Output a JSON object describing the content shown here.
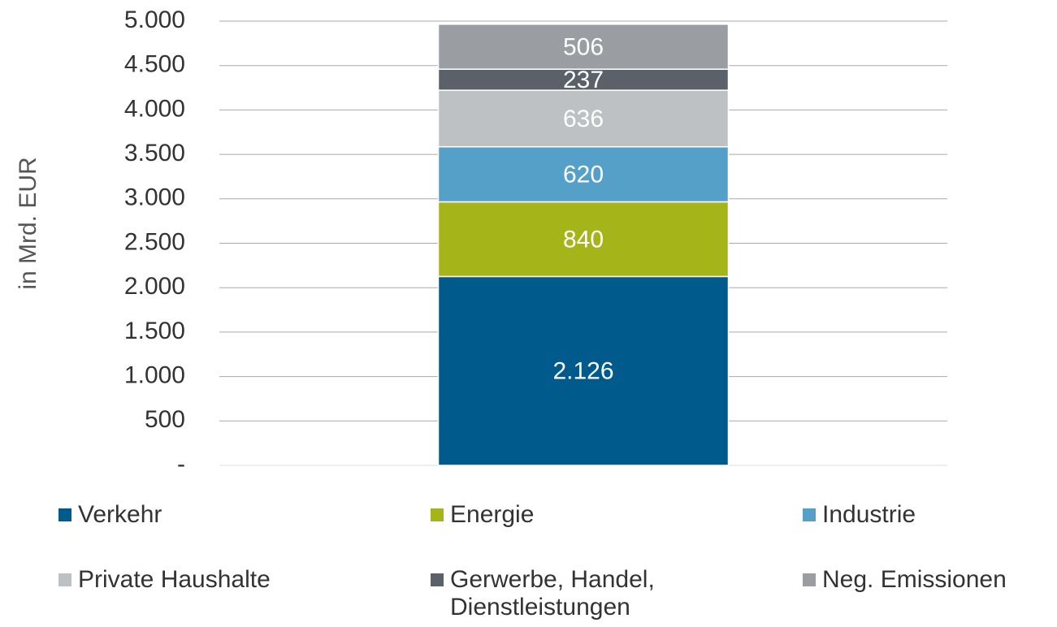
{
  "chart_data": {
    "type": "stacked_bar",
    "y_label": "in Mrd. EUR",
    "categories": [
      null
    ],
    "series": [
      {
        "name": "Verkehr",
        "color": "#005b8c",
        "values": [
          2126
        ],
        "value_labels": [
          "2.126"
        ]
      },
      {
        "name": "Energie",
        "color": "#a5b418",
        "values": [
          840
        ]
      },
      {
        "name": "Industrie",
        "color": "#55a0c8",
        "values": [
          620
        ]
      },
      {
        "name": "Private Haushalte",
        "color": "#bdc1c4",
        "values": [
          636
        ]
      },
      {
        "name": "Gerwerbe, Handel, Dienstleistungen",
        "color": "#5a6168",
        "values": [
          237
        ]
      },
      {
        "name": "Neg. Emissionen",
        "color": "#9a9ea2",
        "values": [
          506
        ]
      }
    ],
    "ylim": [
      0,
      5000
    ],
    "yticks": [
      {
        "value": 0,
        "label": "-"
      },
      500,
      {
        "value": 1000,
        "label": "1.000"
      },
      {
        "value": 1500,
        "label": "1.500"
      },
      {
        "value": 2000,
        "label": "2.000"
      },
      {
        "value": 2500,
        "label": "2.500"
      },
      {
        "value": 3000,
        "label": "3.000"
      },
      {
        "value": 3500,
        "label": "3.500"
      },
      {
        "value": 4000,
        "label": "4.000"
      },
      {
        "value": 4500,
        "label": "4.500"
      },
      {
        "value": 5000,
        "label": "5.000"
      }
    ],
    "grid": true,
    "legend": "bottom"
  }
}
